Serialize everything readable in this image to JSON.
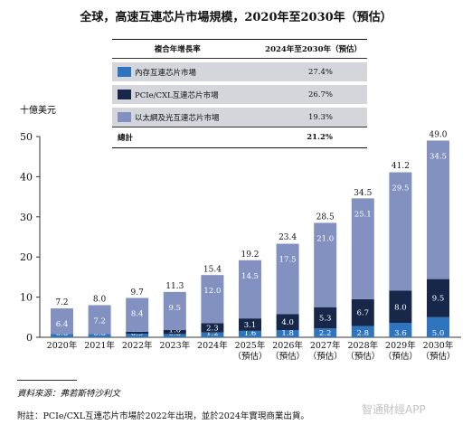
{
  "title": "全球，高速互連芯片市場規模，2020年至2030年（預估）",
  "cagr_table": {
    "header_left": "複合年增長率",
    "header_right": "2024年至2030年（預估）",
    "rows": [
      {
        "label": "內存互連芯片市場",
        "value": "27.4%",
        "color": "#2e74be"
      },
      {
        "label": "PCIe/CXL互連芯片市場",
        "value": "26.7%",
        "color": "#16274a"
      },
      {
        "label": "以太網及光互連芯片市場",
        "value": "19.3%",
        "color": "#8291bf"
      }
    ],
    "total_label": "總計",
    "total_value": "21.2%"
  },
  "source": "資料來源：弗若斯特沙利文",
  "footnote": "附註：PCIe/CXL互連芯片市場於2022年出現，並於2024年實現商業出貨。",
  "watermark": "智通財經APP",
  "chart_data": {
    "type": "bar",
    "stacked": true,
    "ylabel": "十億美元",
    "ylim": [
      0,
      50
    ],
    "yticks": [
      0,
      10,
      20,
      30,
      40,
      50
    ],
    "grid": false,
    "categories": [
      "2020年",
      "2021年",
      "2022年",
      "2023年",
      "2024年",
      "2025年\n（預估）",
      "2026年\n（預估）",
      "2027年\n（預估）",
      "2028年\n（預估）",
      "2029年\n（預估）",
      "2030年\n（預估）"
    ],
    "series": [
      {
        "name": "內存互連芯片市場",
        "color": "#2e74be",
        "values": [
          0.8,
          0.8,
          0.9,
          0.8,
          1.2,
          1.6,
          1.8,
          2.2,
          2.8,
          3.6,
          5.0
        ]
      },
      {
        "name": "PCIe/CXL互連芯片市場",
        "color": "#16274a",
        "values": [
          null,
          null,
          0.5,
          1.0,
          2.3,
          3.1,
          4.0,
          5.3,
          6.7,
          8.0,
          9.5
        ]
      },
      {
        "name": "以太網及光互連芯片市場",
        "color": "#8291bf",
        "values": [
          6.4,
          7.2,
          8.4,
          9.5,
          12.0,
          14.5,
          17.5,
          21.0,
          25.1,
          29.5,
          34.5
        ]
      }
    ],
    "totals": [
      7.2,
      8.0,
      9.7,
      11.3,
      15.4,
      19.2,
      23.4,
      28.5,
      34.5,
      41.2,
      49.0
    ]
  }
}
